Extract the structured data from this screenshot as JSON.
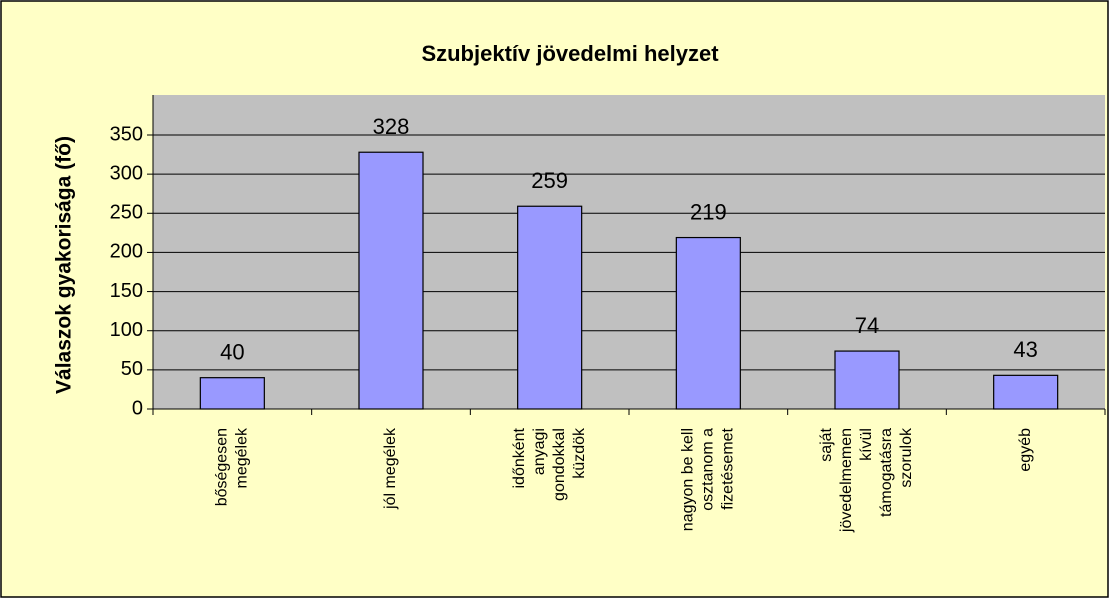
{
  "chart_data": {
    "type": "bar",
    "title": "Szubjektív jövedelmi helyzet",
    "y_label": "Válaszok gyakorisága (fő)",
    "categories": [
      [
        "bőségesen",
        "megélek"
      ],
      [
        "jól megélek"
      ],
      [
        "időnként",
        "anyagi",
        "gondokkal",
        "küzdök"
      ],
      [
        "nagyon be kell",
        "osztanom a",
        "fizetésemet"
      ],
      [
        "saját",
        "jövedelmemen",
        "kívül",
        "támogatásra",
        "szorulok"
      ],
      [
        "egyéb"
      ]
    ],
    "values": [
      40,
      328,
      259,
      219,
      74,
      43
    ],
    "color": "#9999ff",
    "ylim": [
      0,
      350
    ],
    "yticks": [
      0,
      50,
      100,
      150,
      200,
      250,
      300,
      350
    ],
    "grid": true
  }
}
